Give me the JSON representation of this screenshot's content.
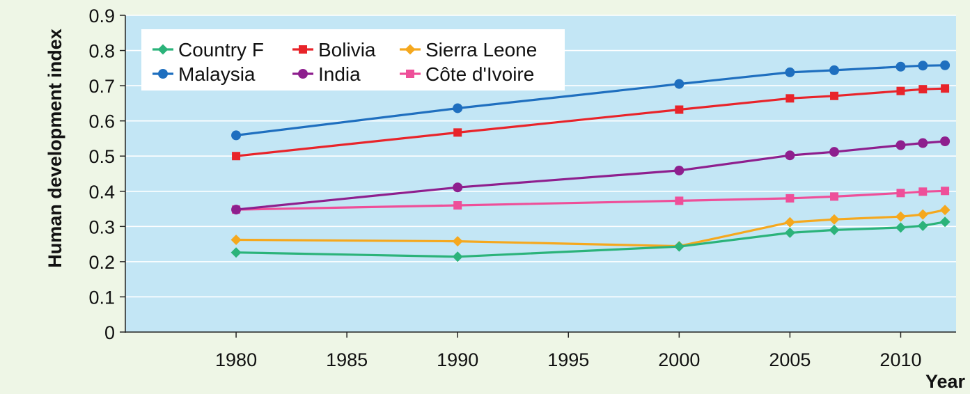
{
  "chart_data": {
    "type": "line",
    "title": "",
    "xlabel": "Year",
    "ylabel": "Human development index",
    "xlim": [
      1975,
      2012.5
    ],
    "ylim": [
      0,
      0.9
    ],
    "x_ticks": [
      1980,
      1985,
      1990,
      1995,
      2000,
      2005,
      2010
    ],
    "y_ticks": [
      0,
      0.1,
      0.2,
      0.3,
      0.4,
      0.5,
      0.6,
      0.7,
      0.8,
      0.9
    ],
    "grid": "horizontal",
    "legend_position": "top-left",
    "background_color": "#c3e6f5",
    "x": [
      1980,
      1990,
      2000,
      2005,
      2007,
      2010,
      2011,
      2012
    ],
    "series": [
      {
        "name": "Country F",
        "color": "#2bb37a",
        "marker": "diamond",
        "x": [
          1980,
          1990,
          2000,
          2005,
          2007,
          2010,
          2011,
          2012
        ],
        "values": [
          0.226,
          0.214,
          0.243,
          0.282,
          0.29,
          0.297,
          0.302,
          0.313
        ]
      },
      {
        "name": "Malaysia",
        "color": "#1f6fbf",
        "marker": "circle",
        "x": [
          1980,
          1990,
          2000,
          2005,
          2007,
          2010,
          2011,
          2012
        ],
        "values": [
          0.559,
          0.636,
          0.705,
          0.738,
          0.744,
          0.754,
          0.757,
          0.758
        ]
      },
      {
        "name": "Bolivia",
        "color": "#e8242a",
        "marker": "square",
        "x": [
          1980,
          1990,
          2000,
          2005,
          2007,
          2010,
          2011,
          2012
        ],
        "values": [
          0.5,
          0.567,
          0.632,
          0.664,
          0.671,
          0.685,
          0.69,
          0.692
        ]
      },
      {
        "name": "India",
        "color": "#8e1f8e",
        "marker": "circle",
        "x": [
          1980,
          1990,
          2000,
          2005,
          2007,
          2010,
          2011,
          2012
        ],
        "values": [
          0.348,
          0.411,
          0.459,
          0.502,
          0.512,
          0.531,
          0.537,
          0.542
        ]
      },
      {
        "name": "Sierra Leone",
        "color": "#f5a81e",
        "marker": "diamond",
        "x": [
          1980,
          1990,
          2000,
          2005,
          2007,
          2010,
          2011,
          2012
        ],
        "values": [
          0.262,
          0.258,
          0.244,
          0.312,
          0.32,
          0.328,
          0.334,
          0.347
        ]
      },
      {
        "name": "Côte d'Ivoire",
        "color": "#ee4f99",
        "marker": "square",
        "x": [
          1980,
          1990,
          2000,
          2005,
          2007,
          2010,
          2011,
          2012
        ],
        "values": [
          0.348,
          0.36,
          0.373,
          0.38,
          0.385,
          0.395,
          0.399,
          0.401
        ]
      }
    ]
  }
}
